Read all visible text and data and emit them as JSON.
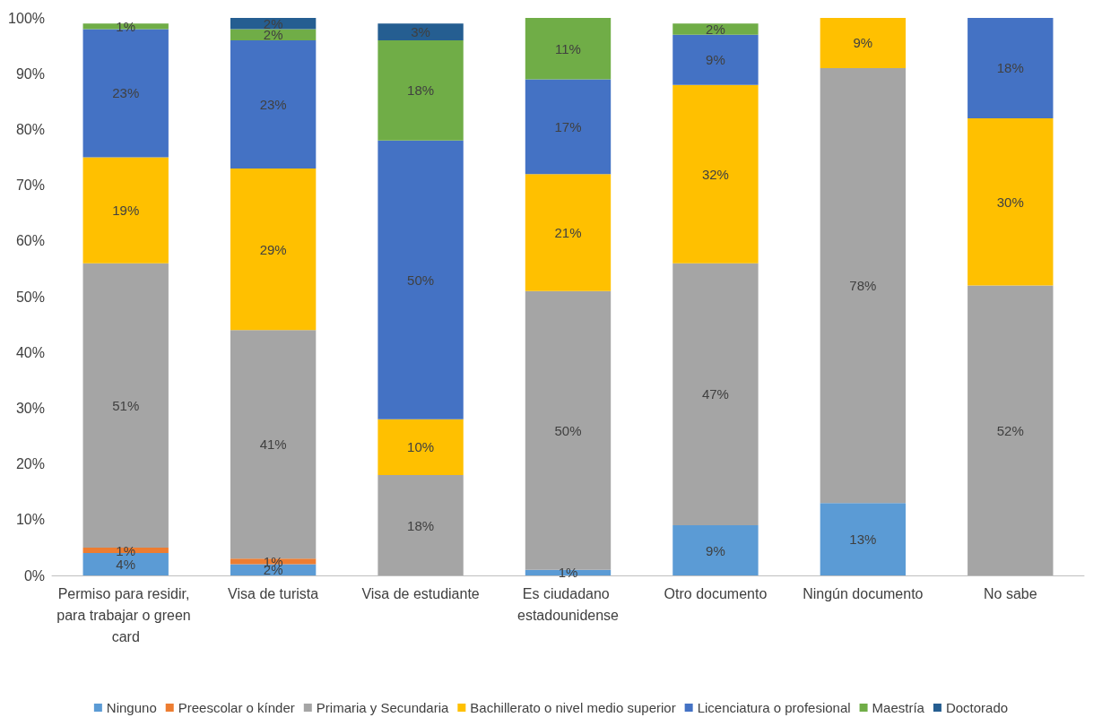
{
  "chart_data": {
    "type": "bar",
    "stacked": true,
    "categories": [
      "Permiso para residir, para trabajar o green card",
      "Visa de turista",
      "Visa de estudiante",
      "Es ciudadano estadounidense",
      "Otro documento",
      "Ningún documento",
      "No sabe"
    ],
    "series": [
      {
        "name": "Ninguno",
        "color": "#5b9bd5",
        "values": [
          4,
          2,
          0,
          1,
          9,
          13,
          0
        ],
        "value_labels": [
          "4%",
          "2%",
          null,
          "1%",
          "9%",
          "13%",
          null
        ]
      },
      {
        "name": "Preescolar o kínder",
        "color": "#ed7d31",
        "values": [
          1,
          1,
          0,
          0,
          0,
          0,
          0
        ],
        "value_labels": [
          "1%",
          "1%",
          null,
          null,
          null,
          null,
          null
        ]
      },
      {
        "name": "Primaria y Secundaria",
        "color": "#a5a5a5",
        "values": [
          51,
          41,
          18,
          50,
          47,
          78,
          52
        ],
        "value_labels": [
          "51%",
          "41%",
          "18%",
          "50%",
          "47%",
          "78%",
          "52%"
        ]
      },
      {
        "name": "Bachillerato o nivel medio superior",
        "color": "#ffc000",
        "values": [
          19,
          29,
          10,
          21,
          32,
          9,
          30
        ],
        "value_labels": [
          "19%",
          "29%",
          "10%",
          "21%",
          "32%",
          "9%",
          "30%"
        ]
      },
      {
        "name": "Licenciatura o profesional",
        "color": "#4472c4",
        "values": [
          23,
          23,
          50,
          17,
          9,
          0.4,
          18
        ],
        "value_labels": [
          "23%",
          "23%",
          "50%",
          "17%",
          "9%",
          null,
          "18%"
        ]
      },
      {
        "name": "Maestría",
        "color": "#70ad47",
        "values": [
          1,
          2,
          18,
          11,
          2,
          0,
          0
        ],
        "value_labels": [
          "1%",
          "2%",
          "18%",
          "11%",
          "2%",
          null,
          null
        ]
      },
      {
        "name": "Doctorado",
        "color": "#255e91",
        "values": [
          0,
          2,
          3,
          0,
          0,
          0,
          0
        ],
        "value_labels": [
          null,
          "2%",
          "3%",
          null,
          null,
          null,
          null
        ]
      }
    ],
    "ylim": [
      0,
      100
    ],
    "yticks": [
      {
        "value": 0,
        "label": "0%"
      },
      {
        "value": 10,
        "label": "10%"
      },
      {
        "value": 20,
        "label": "20%"
      },
      {
        "value": 30,
        "label": "30%"
      },
      {
        "value": 40,
        "label": "40%"
      },
      {
        "value": 50,
        "label": "50%"
      },
      {
        "value": 60,
        "label": "60%"
      },
      {
        "value": 70,
        "label": "70%"
      },
      {
        "value": 80,
        "label": "80%"
      },
      {
        "value": 90,
        "label": "90%"
      },
      {
        "value": 100,
        "label": "100%"
      }
    ],
    "grid": false,
    "legend": "bottom"
  }
}
